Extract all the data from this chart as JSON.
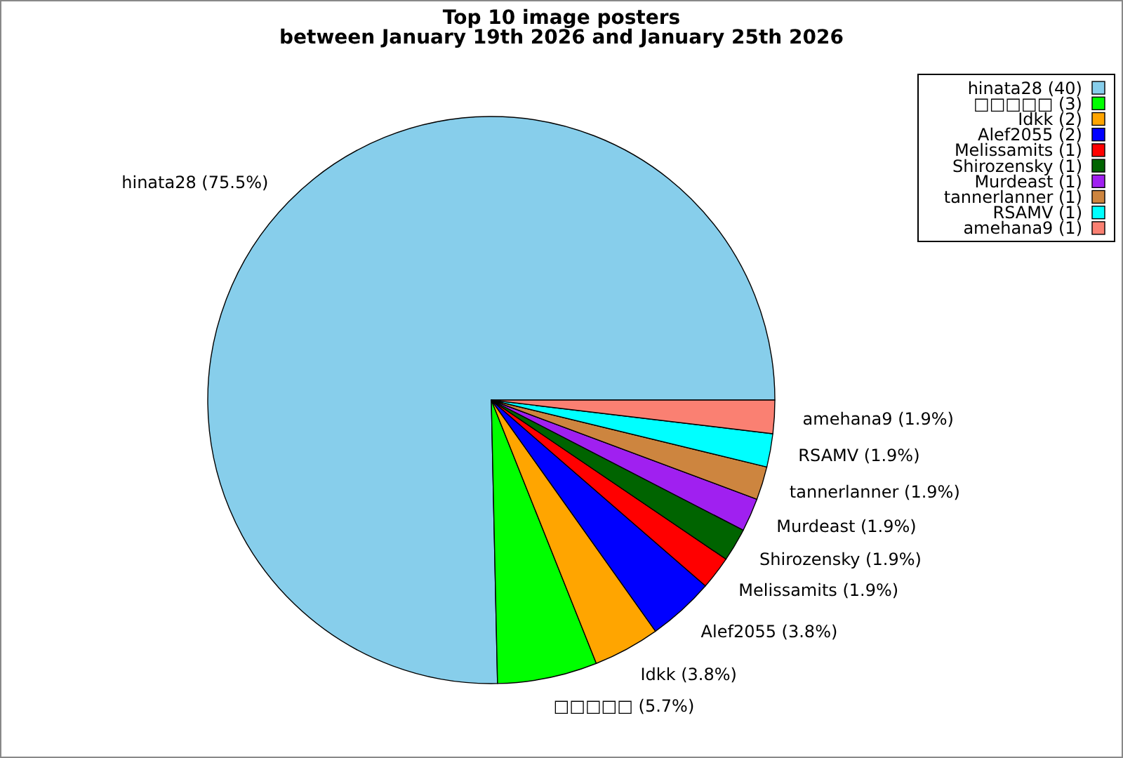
{
  "chart_data": {
    "type": "pie",
    "title": "Top 10 image posters",
    "subtitle": "between January 19th 2026 and January 25th 2026",
    "categories": [
      "hinata28 (40)",
      "□□□□□ (3)",
      "Idkk (2)",
      "Alef2055 (2)",
      "Melissamits (1)",
      "Shirozensky (1)",
      "Murdeast (1)",
      "tannerlanner (1)",
      "RSAMV (1)",
      "amehana9 (1)"
    ],
    "values": [
      75.5,
      5.7,
      3.8,
      3.8,
      1.9,
      1.9,
      1.9,
      1.9,
      1.9,
      1.9
    ],
    "value_labels": [
      "hinata28 (75.5%)",
      "□□□□□ (5.7%)",
      "Idkk (3.8%)",
      "Alef2055 (3.8%)",
      "Melissamits (1.9%)",
      "Shirozensky (1.9%)",
      "Murdeast (1.9%)",
      "tannerlanner (1.9%)",
      "RSAMV (1.9%)",
      "amehana9 (1.9%)"
    ],
    "colors": [
      "#87ceeb",
      "#00ff00",
      "#ffa500",
      "#0000ff",
      "#ff0000",
      "#006400",
      "#a020f0",
      "#cd853f",
      "#00ffff",
      "#fa8072"
    ],
    "legend": "top right"
  }
}
